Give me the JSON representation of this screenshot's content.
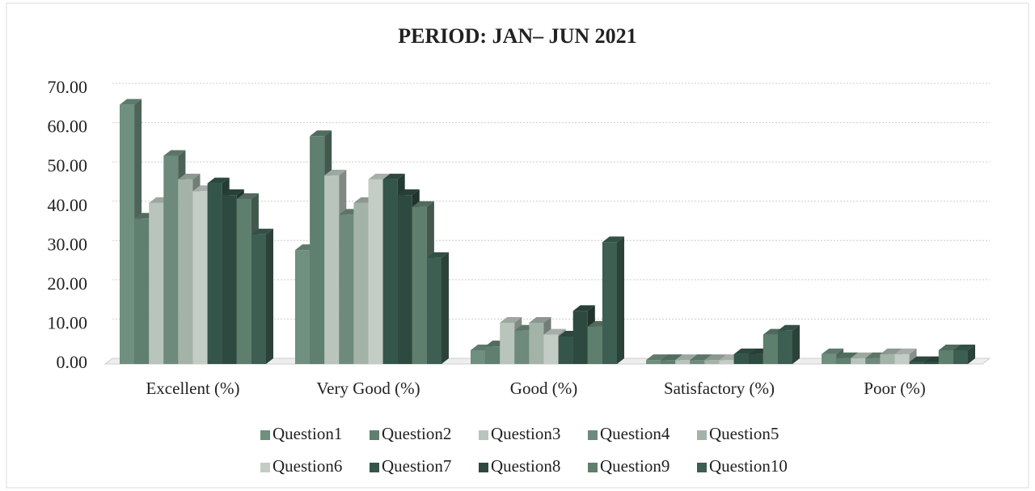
{
  "chart_data": {
    "type": "bar",
    "title": "PERIOD: JAN– JUN 2021",
    "categories": [
      "Excellent (%)",
      "Very Good (%)",
      "Good (%)",
      "Satisfactory (%)",
      "Poor (%)"
    ],
    "series": [
      {
        "name": "Question1",
        "color": "#6f8f7f",
        "values": [
          66,
          29,
          3.5,
          1,
          2.5
        ]
      },
      {
        "name": "Question2",
        "color": "#5f7f70",
        "values": [
          37,
          58,
          4.5,
          1,
          1.5
        ]
      },
      {
        "name": "Question3",
        "color": "#b8c4bc",
        "values": [
          41,
          48,
          10.5,
          1,
          1.5
        ]
      },
      {
        "name": "Question4",
        "color": "#6d8a7c",
        "values": [
          53,
          38,
          8.5,
          1,
          1.5
        ]
      },
      {
        "name": "Question5",
        "color": "#a3b3a8",
        "values": [
          47,
          41,
          10.5,
          1,
          2.5
        ]
      },
      {
        "name": "Question6",
        "color": "#c4ccc6",
        "values": [
          44,
          47,
          7.5,
          1,
          2.5
        ]
      },
      {
        "name": "Question7",
        "color": "#34554a",
        "values": [
          46,
          47,
          7,
          2.5,
          0.5
        ]
      },
      {
        "name": "Question8",
        "color": "#2e4a40",
        "values": [
          43,
          43,
          13.5,
          2.5,
          0.5
        ]
      },
      {
        "name": "Question9",
        "color": "#5e7e6e",
        "values": [
          42,
          40,
          9.5,
          7.5,
          3.5
        ]
      },
      {
        "name": "Question10",
        "color": "#3d5e52",
        "values": [
          33,
          27,
          31,
          8.5,
          3.5
        ]
      }
    ],
    "ylim": [
      0,
      70
    ],
    "yticks": [
      {
        "value": 0,
        "label": "0.00"
      },
      {
        "value": 10,
        "label": "10.00"
      },
      {
        "value": 20,
        "label": "20.00"
      },
      {
        "value": 30,
        "label": "30.00"
      },
      {
        "value": 40,
        "label": "40.00"
      },
      {
        "value": 50,
        "label": "50.00"
      },
      {
        "value": 60,
        "label": "60.00"
      },
      {
        "value": 70,
        "label": "70.00"
      }
    ],
    "grid": true,
    "legend": "bottom"
  }
}
